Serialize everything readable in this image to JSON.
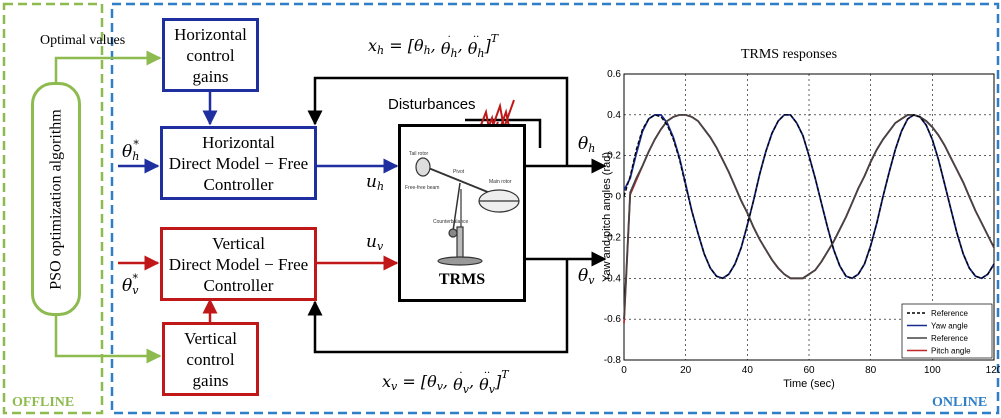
{
  "offline": {
    "optimizer_label": "PSO optimization algorithm",
    "optimal_values_label": "Optimal values",
    "corner_label": "OFFLINE"
  },
  "online": {
    "corner_label": "ONLINE"
  },
  "horizontal": {
    "gains_lines": [
      "Horizontal",
      "control",
      "gains"
    ],
    "controller_lines": [
      "Horizontal",
      "Direct Model − Free",
      "Controller"
    ],
    "input_symbol": "θ",
    "input_sub": "h",
    "input_sup": "*",
    "control_symbol": "u",
    "control_sub": "h",
    "output_symbol": "θ",
    "output_sub": "h",
    "state_lhs": "x",
    "state_sub": "h",
    "state_sup": "T"
  },
  "vertical": {
    "gains_lines": [
      "Vertical",
      "control",
      "gains"
    ],
    "controller_lines": [
      "Vertical",
      "Direct Model − Free",
      "Controller"
    ],
    "input_symbol": "θ",
    "input_sub": "v",
    "input_sup": "*",
    "control_symbol": "u",
    "control_sub": "v",
    "output_symbol": "θ",
    "output_sub": "v",
    "state_lhs": "x",
    "state_sub": "v",
    "state_sup": "T"
  },
  "plant": {
    "label": "TRMS",
    "disturbance_label": "Disturbances",
    "sketch_labels": [
      "Tail rotor",
      "Pivot",
      "Main rotor",
      "Free-free beam",
      "Counterbalance"
    ]
  },
  "colors": {
    "horizontal": "#1f2f9f",
    "vertical": "#c01818",
    "offline": "#8dbb4f",
    "online": "#2f7fc8"
  },
  "chart_data": {
    "type": "line",
    "title": "TRMS responses",
    "xlabel": "Time (sec)",
    "ylabel": "Yaw and pitch angles (rad)",
    "xlim": [
      0,
      120
    ],
    "ylim": [
      -0.8,
      0.6
    ],
    "xticks": [
      0,
      20,
      40,
      60,
      80,
      100,
      120
    ],
    "yticks": [
      -0.8,
      -0.6,
      -0.4,
      -0.2,
      0,
      0.2,
      0.4,
      0.6
    ],
    "grid": true,
    "legend_position": "bottom-right",
    "x": [
      0,
      2,
      4,
      6,
      8,
      10,
      12,
      14,
      16,
      18,
      20,
      22,
      24,
      26,
      28,
      30,
      32,
      34,
      36,
      38,
      40,
      42,
      44,
      46,
      48,
      50,
      52,
      54,
      56,
      58,
      60,
      62,
      64,
      66,
      68,
      70,
      72,
      74,
      76,
      78,
      80,
      82,
      84,
      86,
      88,
      90,
      92,
      94,
      96,
      98,
      100,
      102,
      104,
      106,
      108,
      110,
      112,
      114,
      116,
      118,
      120
    ],
    "series": [
      {
        "name": "Reference",
        "color": "#000000",
        "dash": true,
        "values": [
          0,
          0.1,
          0.23,
          0.33,
          0.38,
          0.4,
          0.39,
          0.35,
          0.28,
          0.18,
          0.05,
          -0.07,
          -0.18,
          -0.28,
          -0.35,
          -0.39,
          -0.4,
          -0.38,
          -0.33,
          -0.25,
          -0.14,
          -0.02,
          0.11,
          0.22,
          0.31,
          0.37,
          0.4,
          0.4,
          0.36,
          0.3,
          0.2,
          0.09,
          -0.03,
          -0.15,
          -0.26,
          -0.34,
          -0.39,
          -0.4,
          -0.38,
          -0.33,
          -0.24,
          -0.13,
          0.0,
          0.12,
          0.23,
          0.32,
          0.38,
          0.4,
          0.39,
          0.35,
          0.28,
          0.18,
          0.06,
          -0.06,
          -0.18,
          -0.28,
          -0.35,
          -0.39,
          -0.4,
          -0.38,
          -0.33
        ]
      },
      {
        "name": "Yaw angle",
        "color": "#1a2a8c",
        "dash": false,
        "values": [
          0.03,
          0.09,
          0.21,
          0.32,
          0.38,
          0.4,
          0.4,
          0.36,
          0.29,
          0.19,
          0.06,
          -0.07,
          -0.18,
          -0.28,
          -0.35,
          -0.39,
          -0.4,
          -0.38,
          -0.33,
          -0.25,
          -0.14,
          -0.02,
          0.11,
          0.22,
          0.31,
          0.37,
          0.4,
          0.4,
          0.36,
          0.3,
          0.2,
          0.09,
          -0.03,
          -0.15,
          -0.26,
          -0.34,
          -0.39,
          -0.4,
          -0.38,
          -0.33,
          -0.24,
          -0.13,
          0.0,
          0.12,
          0.23,
          0.32,
          0.38,
          0.4,
          0.39,
          0.35,
          0.28,
          0.18,
          0.06,
          -0.06,
          -0.18,
          -0.28,
          -0.35,
          -0.39,
          -0.4,
          -0.38,
          -0.33
        ]
      },
      {
        "name": "Reference",
        "color": "#444444",
        "dash": false,
        "values": [
          -0.6,
          0.02,
          0.09,
          0.15,
          0.22,
          0.28,
          0.33,
          0.37,
          0.39,
          0.4,
          0.4,
          0.39,
          0.37,
          0.33,
          0.29,
          0.24,
          0.18,
          0.12,
          0.05,
          -0.02,
          -0.08,
          -0.15,
          -0.21,
          -0.26,
          -0.31,
          -0.35,
          -0.38,
          -0.4,
          -0.4,
          -0.4,
          -0.38,
          -0.36,
          -0.32,
          -0.27,
          -0.22,
          -0.16,
          -0.1,
          -0.03,
          0.04,
          0.1,
          0.17,
          0.23,
          0.28,
          0.32,
          0.36,
          0.38,
          0.4,
          0.4,
          0.39,
          0.37,
          0.34,
          0.3,
          0.25,
          0.19,
          0.13,
          0.07,
          0.0,
          -0.07,
          -0.13,
          -0.19,
          -0.25
        ]
      },
      {
        "name": "Pitch angle",
        "color": "#c0282e",
        "dash": false,
        "values": [
          -0.62,
          0.01,
          0.08,
          0.15,
          0.22,
          0.28,
          0.33,
          0.37,
          0.39,
          0.4,
          0.4,
          0.39,
          0.37,
          0.33,
          0.29,
          0.24,
          0.18,
          0.12,
          0.05,
          -0.02,
          -0.08,
          -0.15,
          -0.21,
          -0.26,
          -0.31,
          -0.35,
          -0.38,
          -0.4,
          -0.4,
          -0.4,
          -0.38,
          -0.36,
          -0.32,
          -0.27,
          -0.22,
          -0.16,
          -0.1,
          -0.03,
          0.04,
          0.1,
          0.17,
          0.23,
          0.28,
          0.32,
          0.36,
          0.38,
          0.4,
          0.4,
          0.39,
          0.37,
          0.34,
          0.3,
          0.25,
          0.19,
          0.13,
          0.07,
          0.0,
          -0.07,
          -0.13,
          -0.19,
          -0.25
        ]
      }
    ]
  }
}
